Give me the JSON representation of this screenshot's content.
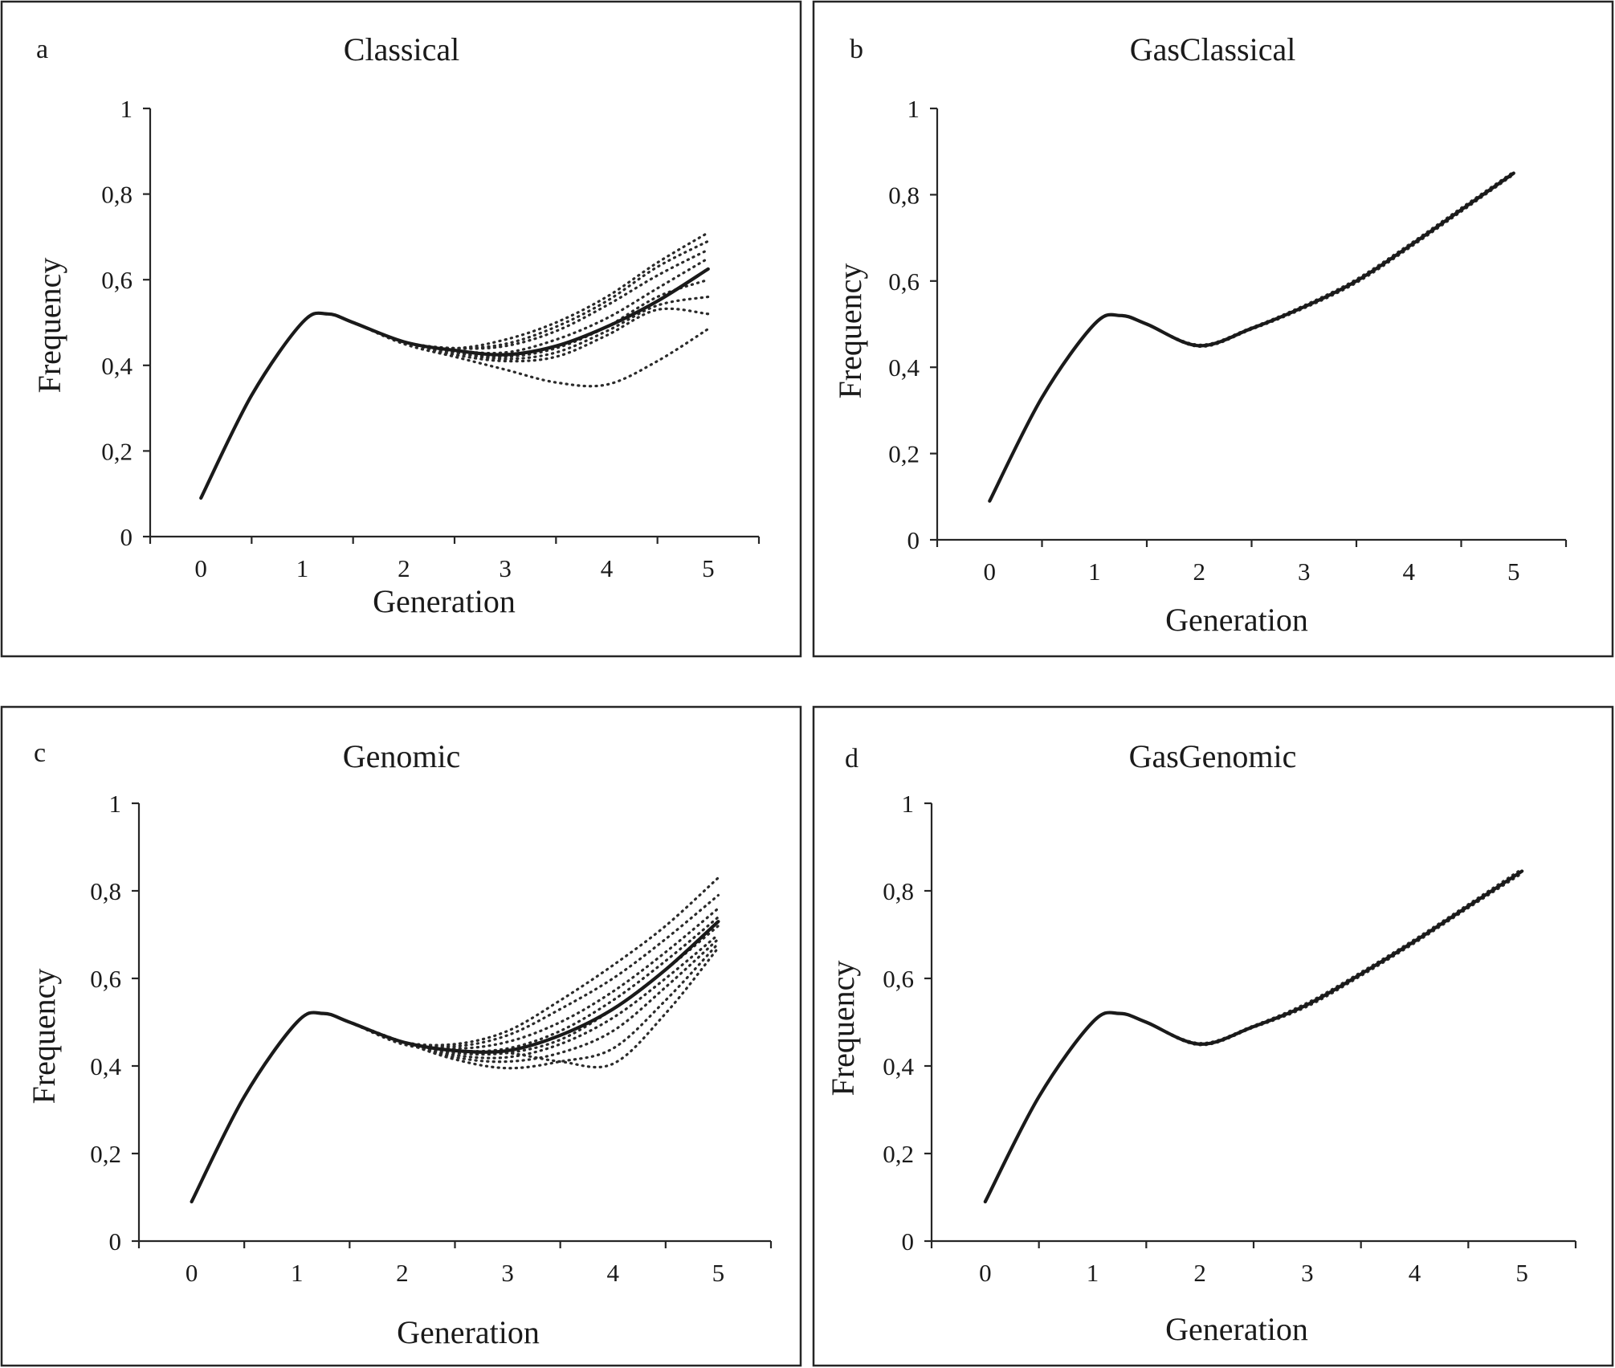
{
  "figure": {
    "panels": [
      {
        "letter": "a",
        "title": "Classical",
        "xlabel": "Generation",
        "ylabel": "Frequency",
        "ylabel_color": "#7f7f7f"
      },
      {
        "letter": "b",
        "title": "GasClassical",
        "xlabel": "Generation",
        "ylabel": "Frequency",
        "ylabel_color": "#1a1a1a"
      },
      {
        "letter": "c",
        "title": "Genomic",
        "xlabel": "Generation",
        "ylabel": "Frequency",
        "ylabel_color": "#1a1a1a"
      },
      {
        "letter": "d",
        "title": "GasGenomic",
        "xlabel": "Generation",
        "ylabel": "Frequency",
        "ylabel_color": "#1a1a1a"
      }
    ]
  },
  "chart_data": [
    {
      "type": "line",
      "title": "Classical",
      "xlabel": "Generation",
      "ylabel": "Frequency",
      "xlim": [
        -0.5,
        5.5
      ],
      "ylim": [
        0,
        1
      ],
      "x_ticks": [
        "0",
        "1",
        "2",
        "3",
        "4",
        "5"
      ],
      "y_ticks": [
        "0",
        "0,2",
        "0,4",
        "0,6",
        "0,8",
        "1"
      ],
      "grid": false,
      "line_color": "#1a1a1a",
      "x": [
        0,
        0.5,
        1,
        1.25,
        1.5,
        2,
        2.5,
        3,
        3.5,
        4,
        4.5,
        5
      ],
      "series": [
        {
          "style": "solid",
          "values": [
            0.09,
            0.33,
            0.5,
            0.52,
            0.5,
            0.455,
            0.435,
            0.425,
            0.445,
            0.49,
            0.55,
            0.625
          ]
        },
        {
          "style": "dotted",
          "values": [
            0.09,
            0.33,
            0.5,
            0.52,
            0.5,
            0.455,
            0.44,
            0.46,
            0.5,
            0.56,
            0.64,
            0.71
          ]
        },
        {
          "style": "dotted",
          "values": [
            0.09,
            0.33,
            0.5,
            0.52,
            0.5,
            0.455,
            0.44,
            0.45,
            0.49,
            0.55,
            0.63,
            0.69
          ]
        },
        {
          "style": "dotted",
          "values": [
            0.09,
            0.33,
            0.5,
            0.52,
            0.5,
            0.455,
            0.44,
            0.445,
            0.48,
            0.54,
            0.61,
            0.67
          ]
        },
        {
          "style": "dotted",
          "values": [
            0.09,
            0.33,
            0.5,
            0.52,
            0.5,
            0.455,
            0.435,
            0.43,
            0.46,
            0.51,
            0.58,
            0.65
          ]
        },
        {
          "style": "dotted",
          "values": [
            0.09,
            0.33,
            0.5,
            0.52,
            0.5,
            0.455,
            0.43,
            0.42,
            0.44,
            0.49,
            0.56,
            0.6
          ]
        },
        {
          "style": "dotted",
          "values": [
            0.09,
            0.33,
            0.5,
            0.52,
            0.5,
            0.455,
            0.43,
            0.415,
            0.43,
            0.48,
            0.54,
            0.56
          ]
        },
        {
          "style": "dotted",
          "values": [
            0.09,
            0.33,
            0.5,
            0.52,
            0.5,
            0.455,
            0.425,
            0.41,
            0.42,
            0.47,
            0.53,
            0.52
          ]
        },
        {
          "style": "dotted",
          "values": [
            0.09,
            0.33,
            0.5,
            0.52,
            0.5,
            0.45,
            0.42,
            0.39,
            0.36,
            0.355,
            0.41,
            0.485
          ]
        }
      ]
    },
    {
      "type": "line",
      "title": "GasClassical",
      "xlabel": "Generation",
      "ylabel": "Frequency",
      "xlim": [
        -0.5,
        5.5
      ],
      "ylim": [
        0,
        1
      ],
      "x_ticks": [
        "0",
        "1",
        "2",
        "3",
        "4",
        "5"
      ],
      "y_ticks": [
        "0",
        "0,2",
        "0,4",
        "0,6",
        "0,8",
        "1"
      ],
      "grid": false,
      "line_color": "#1a1a1a",
      "x": [
        0,
        0.5,
        1,
        1.25,
        1.5,
        2,
        2.5,
        3,
        3.5,
        4,
        4.5,
        5
      ],
      "series": [
        {
          "style": "solid",
          "values": [
            0.09,
            0.33,
            0.5,
            0.52,
            0.5,
            0.45,
            0.49,
            0.54,
            0.6,
            0.68,
            0.765,
            0.85
          ]
        },
        {
          "style": "dotted",
          "values": [
            0.09,
            0.33,
            0.5,
            0.52,
            0.5,
            0.452,
            0.492,
            0.543,
            0.604,
            0.684,
            0.769,
            0.853
          ]
        },
        {
          "style": "dotted",
          "values": [
            0.09,
            0.33,
            0.5,
            0.52,
            0.5,
            0.448,
            0.488,
            0.537,
            0.596,
            0.676,
            0.761,
            0.847
          ]
        }
      ]
    },
    {
      "type": "line",
      "title": "Genomic",
      "xlabel": "Generation",
      "ylabel": "Frequency",
      "xlim": [
        -0.5,
        5.5
      ],
      "ylim": [
        0,
        1
      ],
      "x_ticks": [
        "0",
        "1",
        "2",
        "3",
        "4",
        "5"
      ],
      "y_ticks": [
        "0",
        "0,2",
        "0,4",
        "0,6",
        "0,8",
        "1"
      ],
      "grid": false,
      "line_color": "#1a1a1a",
      "x": [
        0,
        0.5,
        1,
        1.25,
        1.5,
        2,
        2.5,
        3,
        3.5,
        4,
        4.5,
        5
      ],
      "series": [
        {
          "style": "solid",
          "values": [
            0.09,
            0.33,
            0.5,
            0.52,
            0.5,
            0.455,
            0.435,
            0.435,
            0.47,
            0.53,
            0.62,
            0.73
          ]
        },
        {
          "style": "dotted",
          "values": [
            0.09,
            0.33,
            0.5,
            0.52,
            0.5,
            0.455,
            0.45,
            0.48,
            0.55,
            0.63,
            0.72,
            0.83
          ]
        },
        {
          "style": "dotted",
          "values": [
            0.09,
            0.33,
            0.5,
            0.52,
            0.5,
            0.455,
            0.445,
            0.47,
            0.53,
            0.6,
            0.69,
            0.79
          ]
        },
        {
          "style": "dotted",
          "values": [
            0.09,
            0.33,
            0.5,
            0.52,
            0.5,
            0.455,
            0.44,
            0.455,
            0.5,
            0.57,
            0.66,
            0.76
          ]
        },
        {
          "style": "dotted",
          "values": [
            0.09,
            0.33,
            0.5,
            0.52,
            0.5,
            0.455,
            0.435,
            0.44,
            0.48,
            0.55,
            0.64,
            0.74
          ]
        },
        {
          "style": "dotted",
          "values": [
            0.09,
            0.33,
            0.5,
            0.52,
            0.5,
            0.455,
            0.43,
            0.43,
            0.46,
            0.53,
            0.62,
            0.72
          ]
        },
        {
          "style": "dotted",
          "values": [
            0.09,
            0.33,
            0.5,
            0.52,
            0.5,
            0.455,
            0.425,
            0.42,
            0.45,
            0.51,
            0.6,
            0.7
          ]
        },
        {
          "style": "dotted",
          "values": [
            0.09,
            0.33,
            0.5,
            0.52,
            0.5,
            0.455,
            0.42,
            0.41,
            0.43,
            0.48,
            0.58,
            0.69
          ]
        },
        {
          "style": "dotted",
          "values": [
            0.09,
            0.33,
            0.5,
            0.52,
            0.5,
            0.455,
            0.415,
            0.395,
            0.41,
            0.44,
            0.55,
            0.68
          ]
        },
        {
          "style": "dotted",
          "values": [
            0.09,
            0.33,
            0.5,
            0.52,
            0.5,
            0.45,
            0.435,
            0.43,
            0.41,
            0.405,
            0.52,
            0.67
          ]
        }
      ]
    },
    {
      "type": "line",
      "title": "GasGenomic",
      "xlabel": "Generation",
      "ylabel": "Frequency",
      "xlim": [
        -0.5,
        5.5
      ],
      "ylim": [
        0,
        1
      ],
      "x_ticks": [
        "0",
        "1",
        "2",
        "3",
        "4",
        "5"
      ],
      "y_ticks": [
        "0",
        "0,2",
        "0,4",
        "0,6",
        "0,8",
        "1"
      ],
      "grid": false,
      "line_color": "#1a1a1a",
      "x": [
        0,
        0.5,
        1,
        1.25,
        1.5,
        2,
        2.5,
        3,
        3.5,
        4,
        4.5,
        5
      ],
      "series": [
        {
          "style": "solid",
          "values": [
            0.09,
            0.33,
            0.5,
            0.52,
            0.5,
            0.45,
            0.49,
            0.54,
            0.61,
            0.685,
            0.765,
            0.845
          ]
        },
        {
          "style": "dotted",
          "values": [
            0.09,
            0.33,
            0.5,
            0.52,
            0.5,
            0.452,
            0.492,
            0.544,
            0.614,
            0.689,
            0.769,
            0.85
          ]
        },
        {
          "style": "dotted",
          "values": [
            0.09,
            0.33,
            0.5,
            0.52,
            0.5,
            0.448,
            0.488,
            0.536,
            0.606,
            0.681,
            0.761,
            0.84
          ]
        }
      ]
    }
  ]
}
